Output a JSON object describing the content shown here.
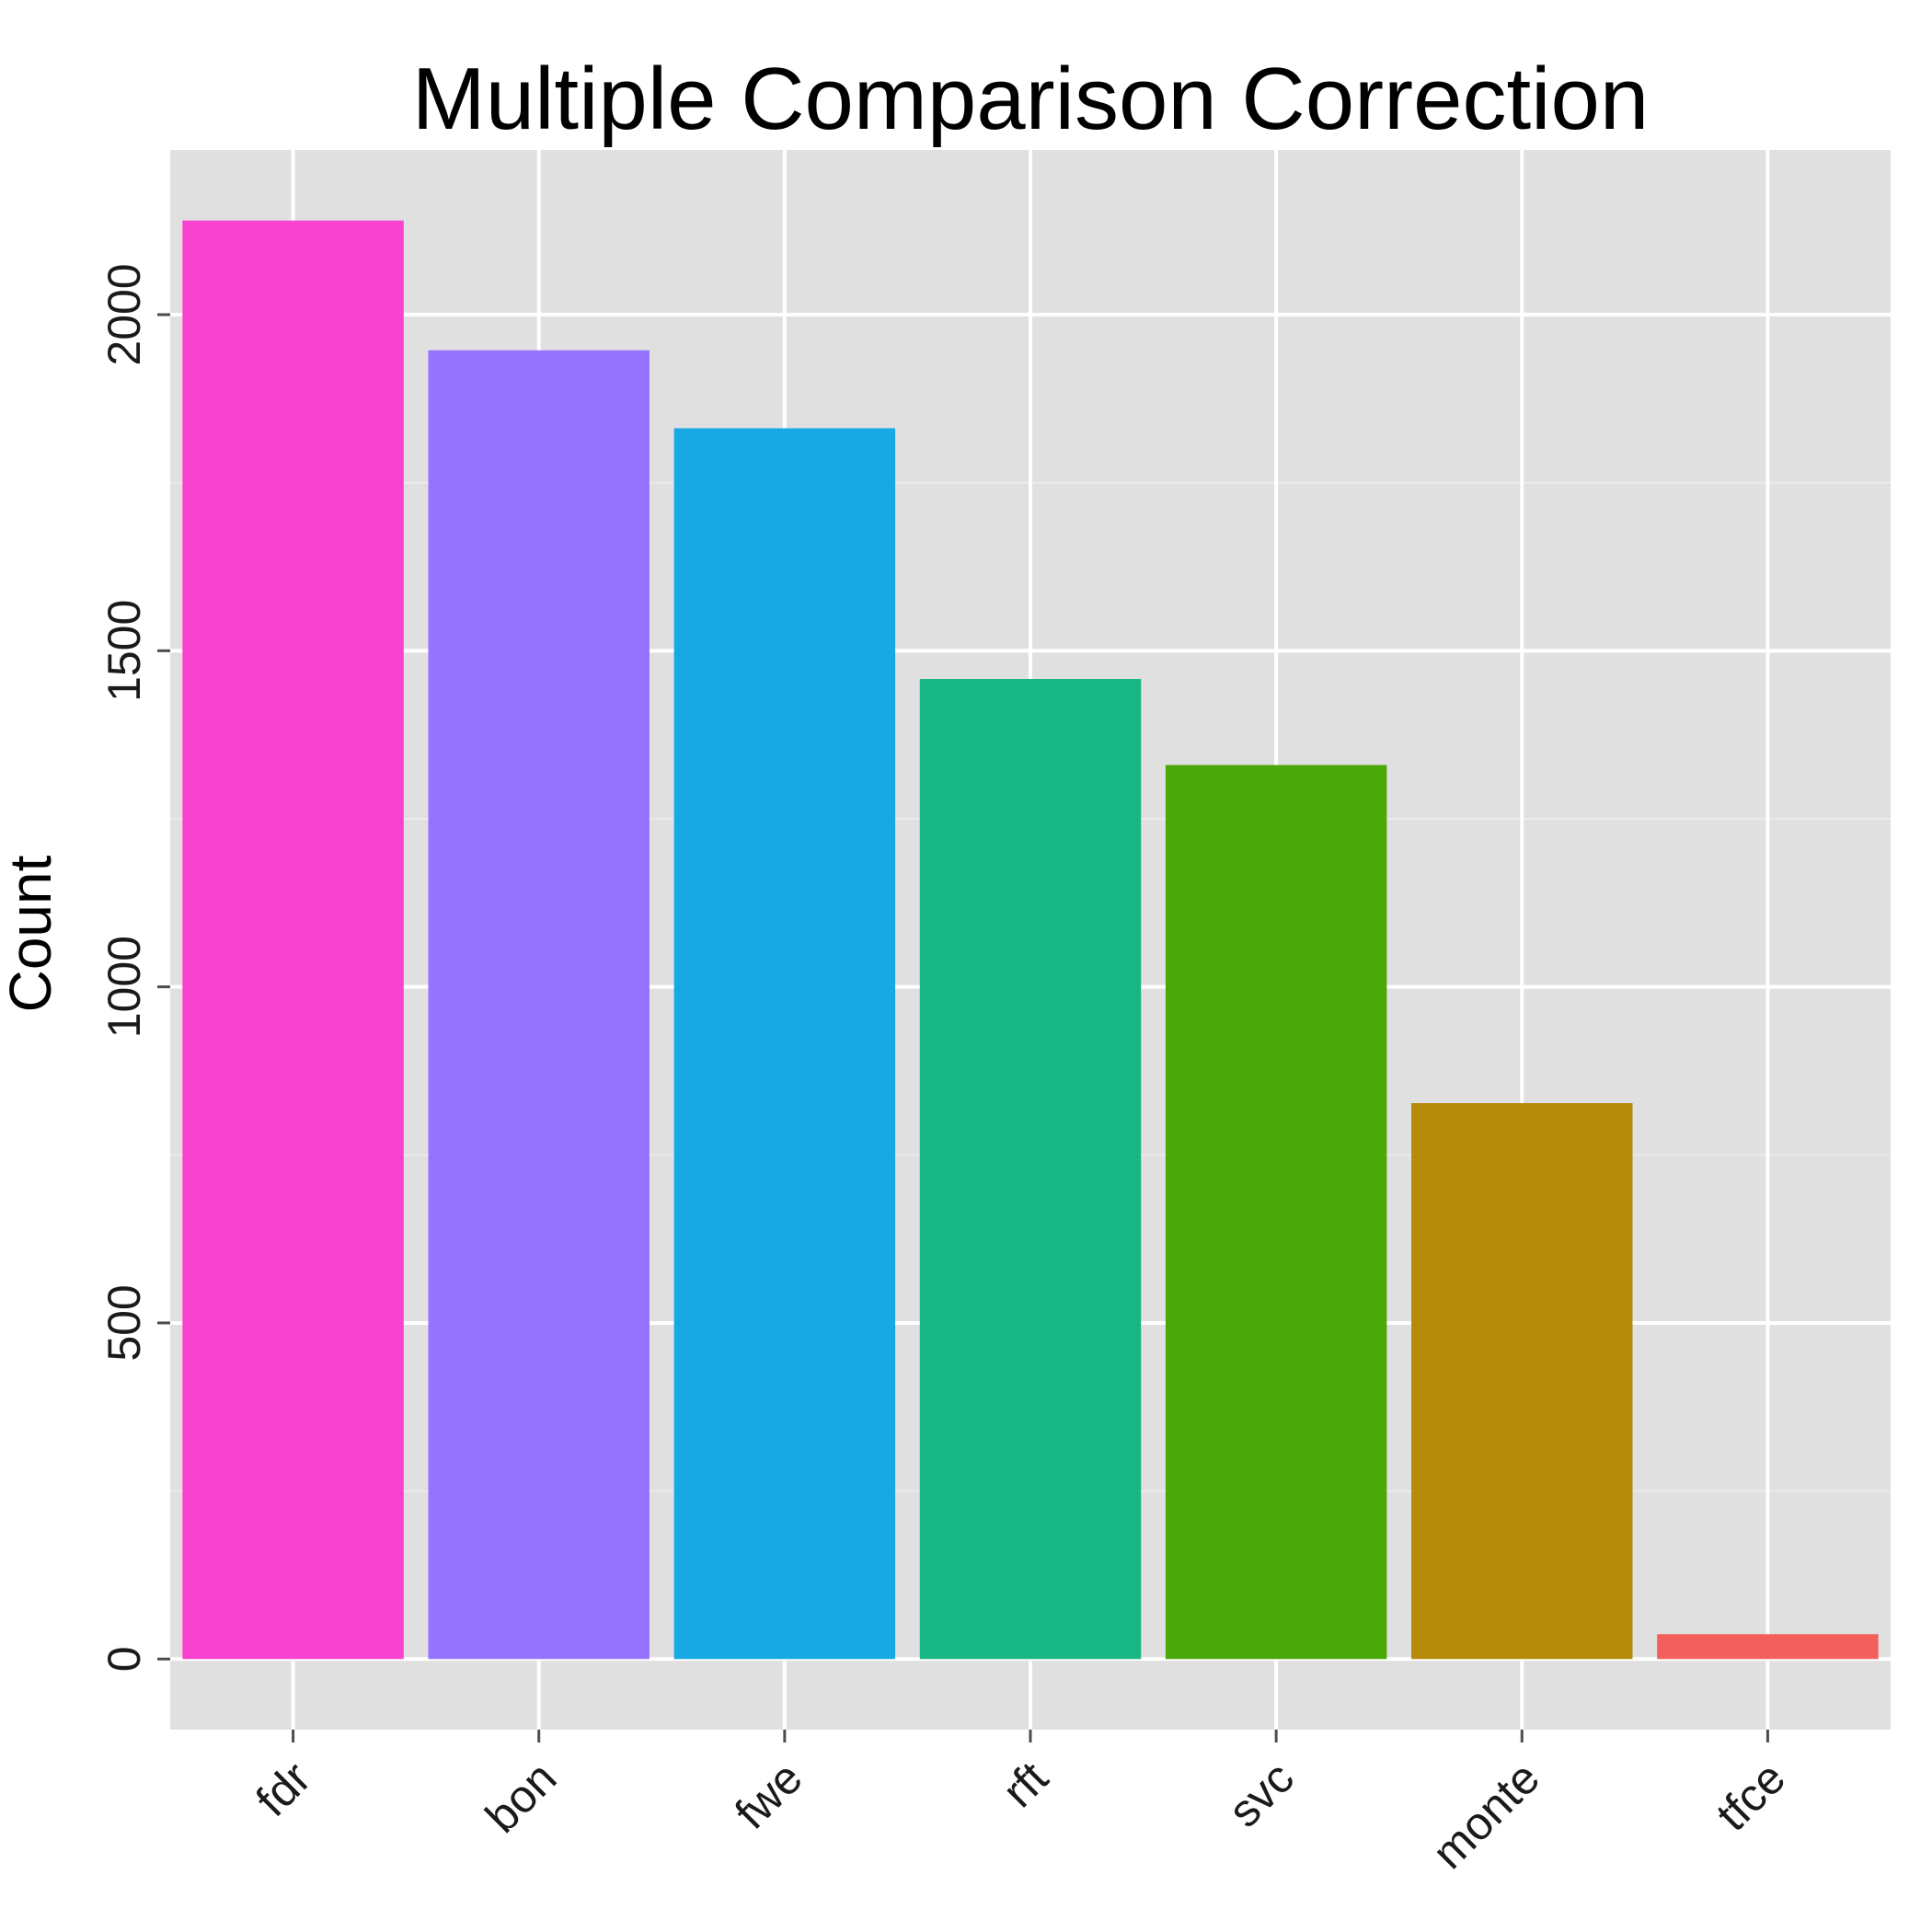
{
  "chart_data": {
    "type": "bar",
    "title": "Multiple Comparison Correction",
    "xlabel": "",
    "ylabel": "Count",
    "categories": [
      "fdr",
      "bon",
      "fwe",
      "rft",
      "svc",
      "monte",
      "tfce"
    ],
    "values": [
      2140,
      1947,
      1831,
      1458,
      1330,
      827,
      37
    ],
    "colors": [
      "#F842D0",
      "#9473FF",
      "#18A8E4",
      "#19B685",
      "#4AA808",
      "#B68A0A",
      "#F25F5C"
    ],
    "ylim": [
      -105,
      2245
    ],
    "yticks": [
      0,
      500,
      1000,
      1500,
      2000
    ],
    "ytick_labels": [
      "0",
      "500",
      "1000",
      "1500",
      "2000"
    ],
    "grid": true,
    "panel_background": "#E0E0E0",
    "grid_color": "#FFFFFF",
    "legend": "none"
  }
}
